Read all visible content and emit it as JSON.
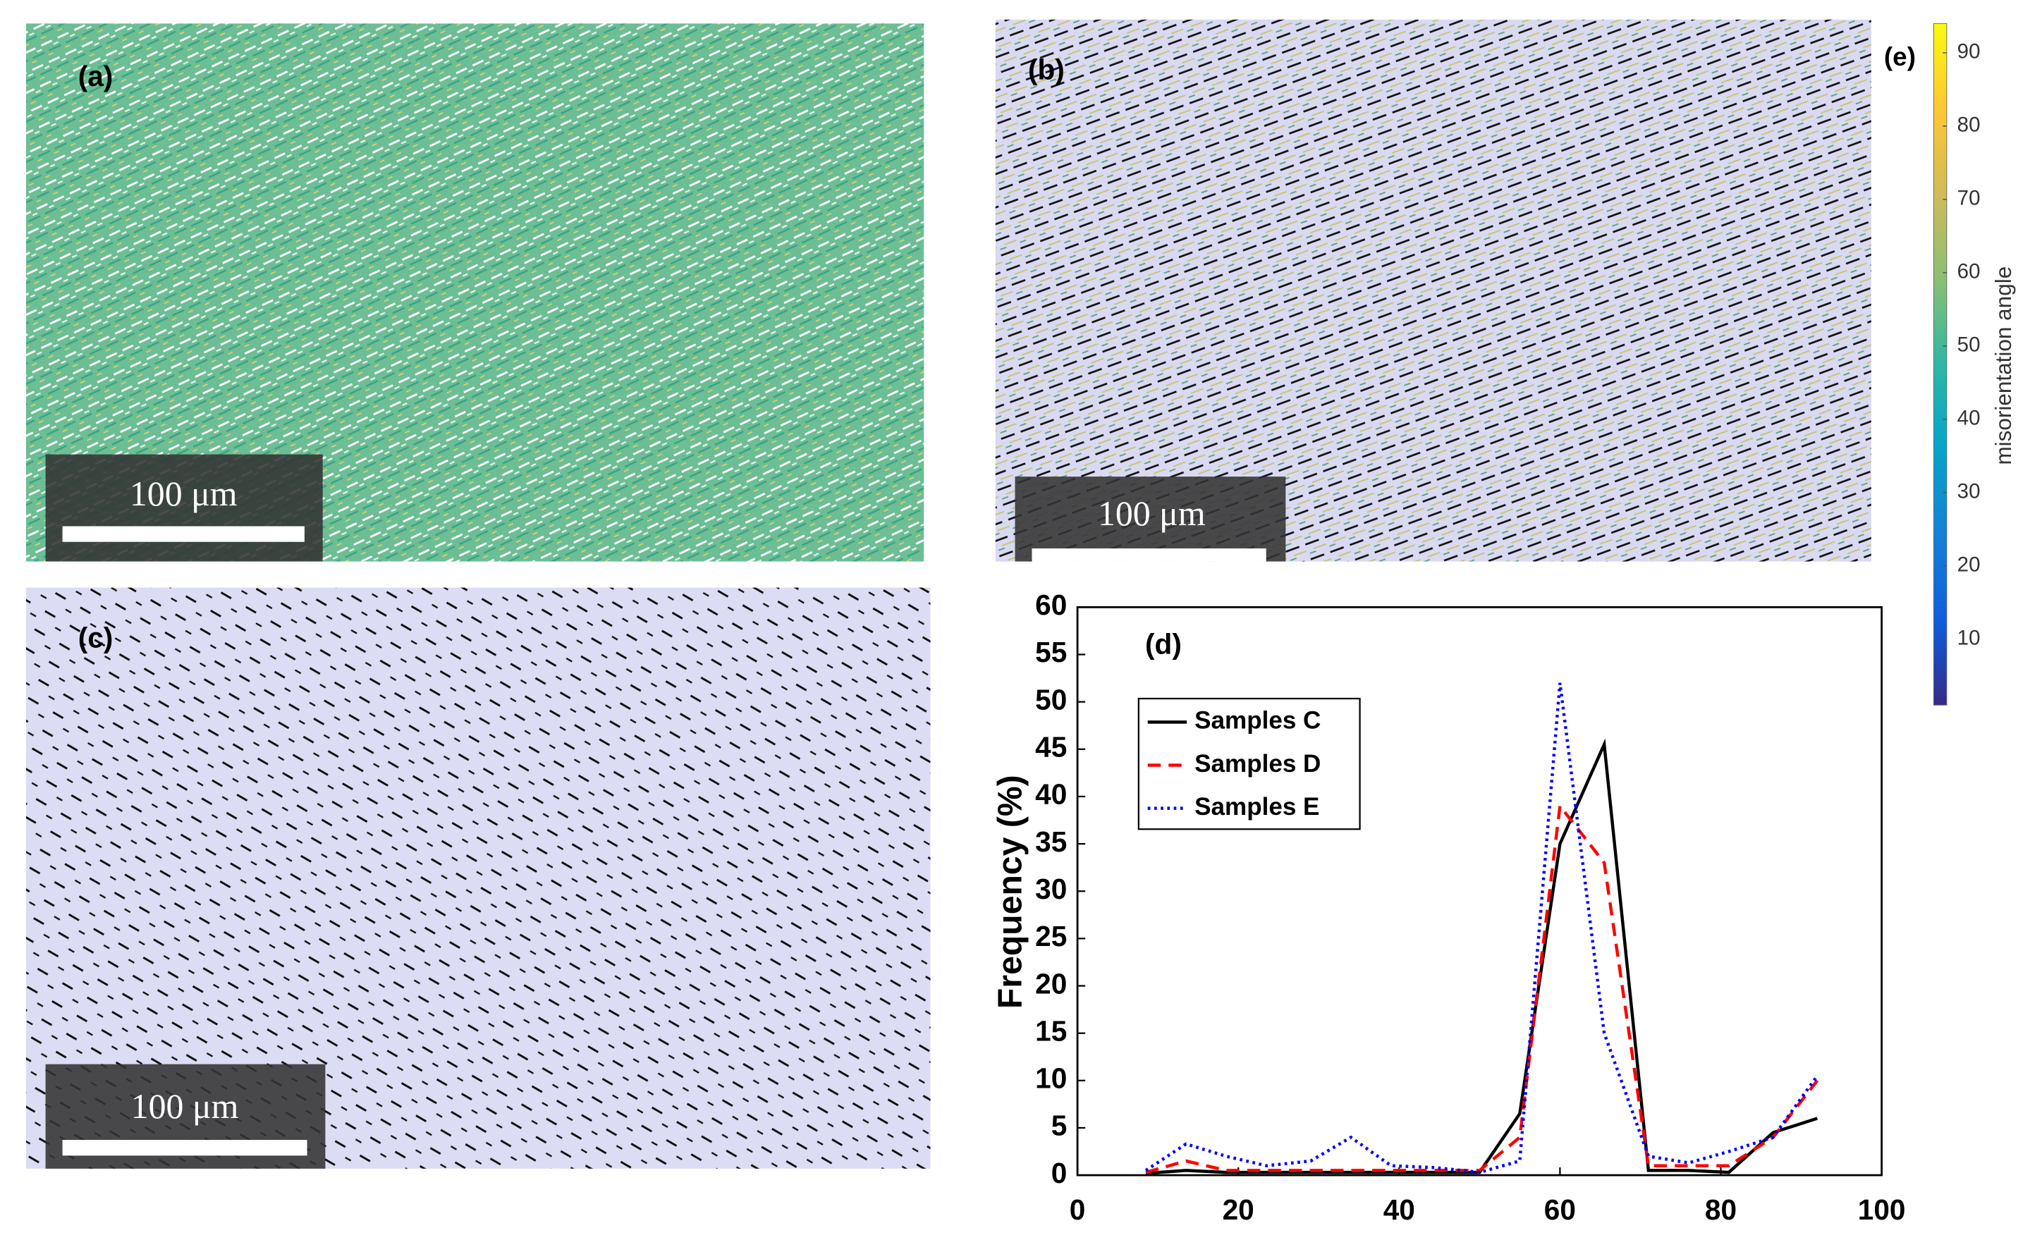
{
  "panels": [
    {
      "label": "(a)",
      "scale_bar": "100 μm"
    },
    {
      "label": "(b)",
      "scale_bar": "100 μm"
    },
    {
      "label": "(c)",
      "scale_bar": "100 μm"
    }
  ],
  "colorbar": {
    "label": "(e)",
    "title": "misorientation angle",
    "clim": [
      1,
      94
    ],
    "ticks": [
      10,
      20,
      30,
      40,
      50,
      60,
      70,
      80,
      90
    ]
  },
  "chart_data": {
    "type": "line",
    "title": "(d)",
    "ylabel": "Frequency (%)",
    "x": [
      8.5,
      13.5,
      18.5,
      23.5,
      29,
      34,
      39,
      44.5,
      50,
      55,
      60,
      65.5,
      71,
      76,
      81,
      86.5,
      92
    ],
    "series": [
      {
        "name": "Samples C",
        "color": "#000000",
        "style": "solid",
        "values": [
          0.2,
          0.5,
          0.3,
          0.3,
          0.3,
          0.3,
          0.3,
          0.3,
          0.3,
          6.5,
          35,
          45.5,
          0.5,
          0.5,
          0.3,
          4.5,
          6
        ]
      },
      {
        "name": "Samples D",
        "color": "#ff0000",
        "style": "dashed",
        "values": [
          0.3,
          1.5,
          0.5,
          0.5,
          0.5,
          0.5,
          0.5,
          0.5,
          0.5,
          4,
          39,
          33,
          1,
          1,
          1,
          4,
          10
        ]
      },
      {
        "name": "Samples E",
        "color": "#0000ff",
        "style": "dotted",
        "values": [
          0.5,
          3.3,
          2,
          1,
          1.5,
          4,
          1,
          0.8,
          0.3,
          1.5,
          52,
          15,
          2,
          1.3,
          2.5,
          4,
          10.5
        ]
      }
    ],
    "xlim": [
      0,
      100
    ],
    "ylim": [
      0,
      60
    ],
    "xticks": [
      0,
      20,
      40,
      60,
      80,
      100
    ],
    "yticks": [
      0,
      5,
      10,
      15,
      20,
      25,
      30,
      35,
      40,
      45,
      50,
      55,
      60
    ],
    "legend": "upper left"
  }
}
